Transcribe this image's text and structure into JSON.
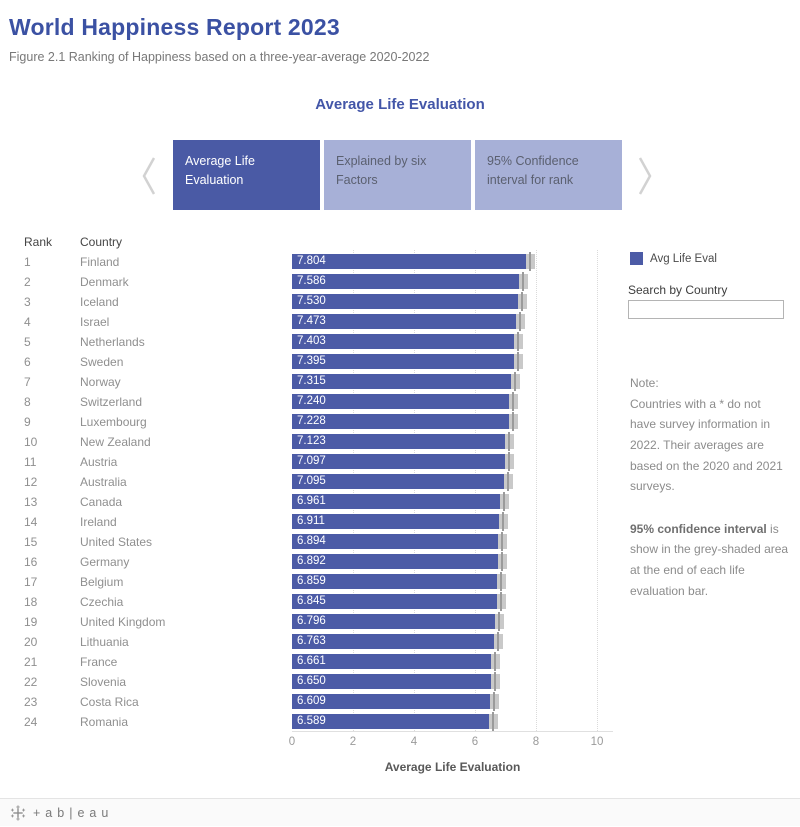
{
  "header": {
    "title": "World Happiness Report 2023",
    "subtitle": "Figure 2.1 Ranking of Happiness based on a three-year-average 2020-2022"
  },
  "section_heading": "Average Life Evaluation",
  "tabs": [
    {
      "label": "Average Life Evaluation",
      "active": true
    },
    {
      "label": "Explained by six Factors",
      "active": false
    },
    {
      "label": "95% Confidence interval for rank",
      "active": false
    }
  ],
  "table": {
    "rank_header": "Rank",
    "country_header": "Country"
  },
  "chart_data": {
    "type": "bar",
    "orientation": "horizontal",
    "title": "Average Life Evaluation",
    "xlabel": "Average Life Evaluation",
    "x_ticks": [
      0,
      2,
      4,
      6,
      8,
      10
    ],
    "xlim": [
      0,
      10.5
    ],
    "grid": true,
    "bar_color": "#4c5ba6",
    "ci_band_color": "#c9c9c9",
    "ci_description": "95% confidence interval shown as grey-shaded area at end of each bar",
    "rows": [
      {
        "rank": 1,
        "country": "Finland",
        "value": 7.804,
        "label": "7.804"
      },
      {
        "rank": 2,
        "country": "Denmark",
        "value": 7.586,
        "label": "7.586"
      },
      {
        "rank": 3,
        "country": "Iceland",
        "value": 7.53,
        "label": "7.530"
      },
      {
        "rank": 4,
        "country": "Israel",
        "value": 7.473,
        "label": "7.473"
      },
      {
        "rank": 5,
        "country": "Netherlands",
        "value": 7.403,
        "label": "7.403"
      },
      {
        "rank": 6,
        "country": "Sweden",
        "value": 7.395,
        "label": "7.395"
      },
      {
        "rank": 7,
        "country": "Norway",
        "value": 7.315,
        "label": "7.315"
      },
      {
        "rank": 8,
        "country": "Switzerland",
        "value": 7.24,
        "label": "7.240"
      },
      {
        "rank": 9,
        "country": "Luxembourg",
        "value": 7.228,
        "label": "7.228"
      },
      {
        "rank": 10,
        "country": "New Zealand",
        "value": 7.123,
        "label": "7.123"
      },
      {
        "rank": 11,
        "country": "Austria",
        "value": 7.097,
        "label": "7.097"
      },
      {
        "rank": 12,
        "country": "Australia",
        "value": 7.095,
        "label": "7.095"
      },
      {
        "rank": 13,
        "country": "Canada",
        "value": 6.961,
        "label": "6.961"
      },
      {
        "rank": 14,
        "country": "Ireland",
        "value": 6.911,
        "label": "6.911"
      },
      {
        "rank": 15,
        "country": "United States",
        "value": 6.894,
        "label": "6.894"
      },
      {
        "rank": 16,
        "country": "Germany",
        "value": 6.892,
        "label": "6.892"
      },
      {
        "rank": 17,
        "country": "Belgium",
        "value": 6.859,
        "label": "6.859"
      },
      {
        "rank": 18,
        "country": "Czechia",
        "value": 6.845,
        "label": "6.845"
      },
      {
        "rank": 19,
        "country": "United Kingdom",
        "value": 6.796,
        "label": "6.796"
      },
      {
        "rank": 20,
        "country": "Lithuania",
        "value": 6.763,
        "label": "6.763"
      },
      {
        "rank": 21,
        "country": "France",
        "value": 6.661,
        "label": "6.661"
      },
      {
        "rank": 22,
        "country": "Slovenia",
        "value": 6.65,
        "label": "6.650"
      },
      {
        "rank": 23,
        "country": "Costa Rica",
        "value": 6.609,
        "label": "6.609"
      },
      {
        "rank": 24,
        "country": "Romania",
        "value": 6.589,
        "label": "6.589"
      }
    ]
  },
  "legend": {
    "label": "Avg Life Eval",
    "color": "#4c5ba6",
    "position": "right"
  },
  "search": {
    "label": "Search by Country",
    "value": "",
    "placeholder": ""
  },
  "notes": {
    "heading": "Note:",
    "para1": "Countries with a * do not have survey information in 2022. Their averages are based on the 2020 and 2021 surveys.",
    "ci_bold": "95% confidence interval",
    "ci_rest": " is show in the grey-shaded area at the end of each life evaluation bar."
  },
  "footer": {
    "wordmark": "+ab|eau"
  },
  "colors": {
    "accent_blue": "#3b51a3",
    "bar_blue": "#4c5ba6",
    "tab_active": "#4a5aa5",
    "tab_inactive": "#a7b0d7",
    "ci_grey": "#c9c9c9"
  }
}
